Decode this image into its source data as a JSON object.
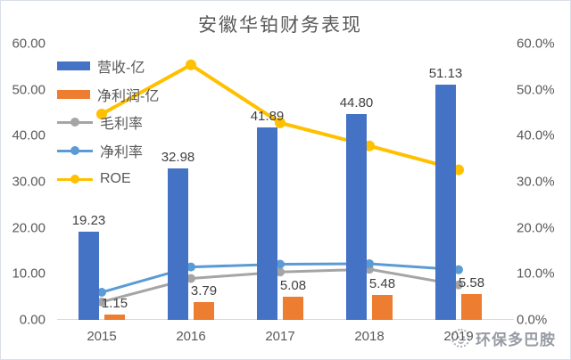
{
  "title": "安徽华铂财务表现",
  "watermark": {
    "text": "环保多巴胺",
    "logo": "smiley-circle-logo"
  },
  "colors": {
    "revenue_bar": "#4472C4",
    "net_profit_bar": "#ED7D31",
    "gross_margin_line": "#A5A5A5",
    "net_margin_line": "#5B9BD5",
    "roe_line": "#FFC000",
    "title_text": "#595959",
    "axis_text": "#595959",
    "data_label_text": "#404040",
    "axis_line": "#D9D9D9"
  },
  "chart_data": {
    "type": "bar",
    "subtype": "combo-bar-line-dual-axis",
    "title": "安徽华铂财务表现",
    "categories": [
      "2015",
      "2016",
      "2017",
      "2018",
      "2019"
    ],
    "bar_series": [
      {
        "name": "营收-亿",
        "color": "#4472C4",
        "axis": "left",
        "values": [
          19.23,
          32.98,
          41.89,
          44.8,
          51.13
        ],
        "labels": [
          "19.23",
          "32.98",
          "41.89",
          "44.80",
          "51.13"
        ]
      },
      {
        "name": "净利润-亿",
        "color": "#ED7D31",
        "axis": "left",
        "values": [
          1.15,
          3.79,
          5.08,
          5.48,
          5.58
        ],
        "labels": [
          "1.15",
          "3.79",
          "5.08",
          "5.48",
          "5.58"
        ]
      }
    ],
    "line_series": [
      {
        "name": "毛利率",
        "color": "#A5A5A5",
        "axis": "right",
        "values": [
          3.9,
          9.0,
          10.4,
          11.0,
          7.6
        ]
      },
      {
        "name": "净利率",
        "color": "#5B9BD5",
        "axis": "right",
        "values": [
          6.0,
          11.5,
          12.1,
          12.2,
          10.9
        ]
      },
      {
        "name": "ROE",
        "color": "#FFC000",
        "axis": "right",
        "values": [
          44.7,
          55.4,
          42.8,
          37.8,
          32.6
        ]
      }
    ],
    "left_axis": {
      "min": 0,
      "max": 60,
      "step": 10,
      "ticks": [
        "60.00",
        "50.00",
        "40.00",
        "30.00",
        "20.00",
        "10.00",
        "0.00"
      ]
    },
    "right_axis": {
      "min": 0,
      "max": 60,
      "step": 10,
      "ticks": [
        "60.0%",
        "50.0%",
        "40.0%",
        "30.0%",
        "20.0%",
        "10.0%",
        "0.0%"
      ]
    },
    "grid": false,
    "legend_position": "inside-top-left",
    "legend": [
      "营收-亿",
      "净利润-亿",
      "毛利率",
      "净利率",
      "ROE"
    ]
  }
}
